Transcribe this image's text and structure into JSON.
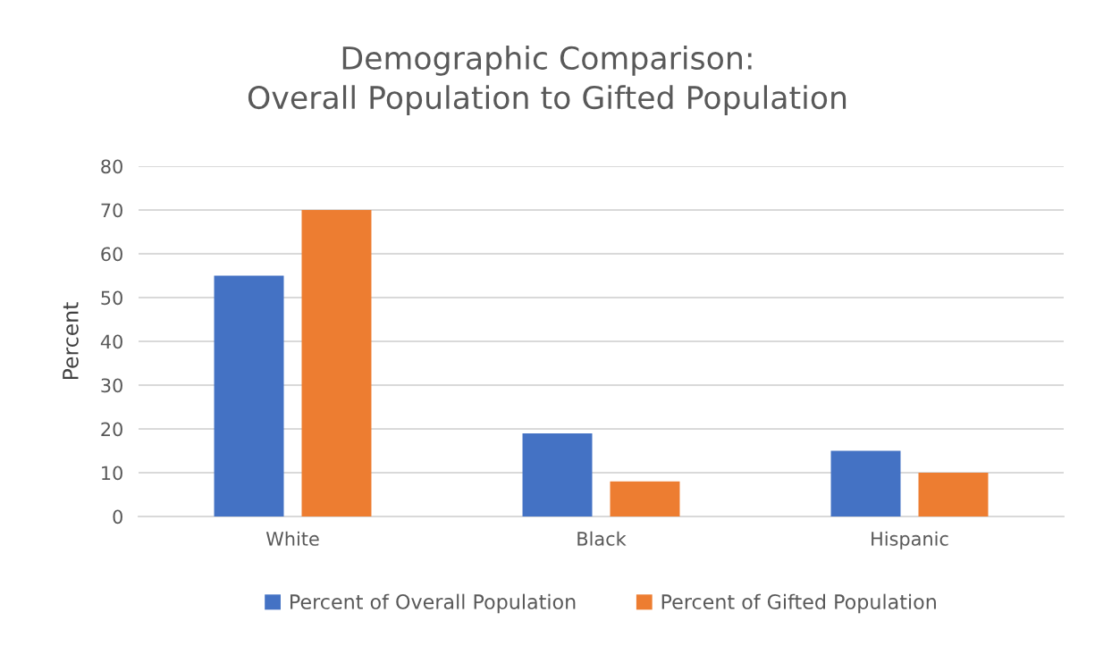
{
  "chart_data": {
    "type": "bar",
    "title": "Demographic Comparison:\nOverall Population to Gifted Population",
    "ylabel": "Percent",
    "categories": [
      "White",
      "Black",
      "Hispanic"
    ],
    "series": [
      {
        "name": "Percent of Overall Population",
        "color": "#4472c4",
        "values": [
          55,
          19,
          15
        ]
      },
      {
        "name": "Percent of Gifted Population",
        "color": "#ed7d31",
        "values": [
          70,
          8,
          10
        ]
      }
    ],
    "ylim": [
      0,
      80
    ],
    "yticks": [
      0,
      10,
      20,
      30,
      40,
      50,
      60,
      70,
      80
    ],
    "grid": "y",
    "legend": "bottom"
  }
}
